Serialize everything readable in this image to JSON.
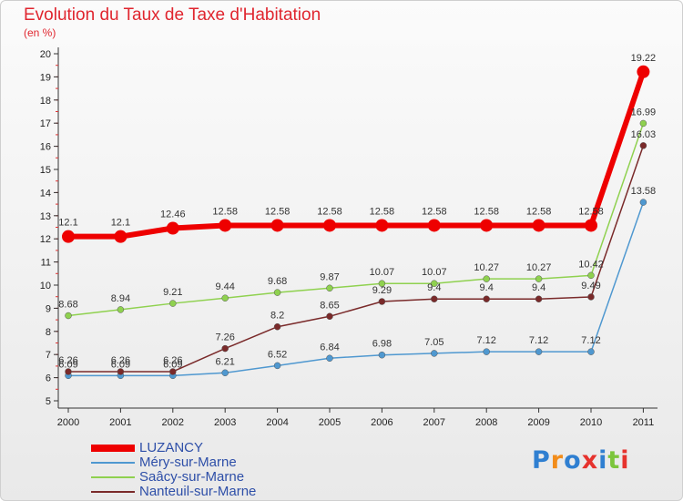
{
  "chart_data": {
    "type": "line",
    "title": "Evolution du Taux de Taxe d'Habitation",
    "subtitle": "(en %)",
    "categories": [
      "2000",
      "2001",
      "2002",
      "2003",
      "2004",
      "2005",
      "2006",
      "2007",
      "2008",
      "2009",
      "2010",
      "2011"
    ],
    "ylim": [
      5,
      20
    ],
    "yticks": [
      5,
      6,
      7,
      8,
      9,
      10,
      11,
      12,
      13,
      14,
      15,
      16,
      17,
      18,
      19,
      20
    ],
    "grid": false,
    "legend_position": "bottom-left",
    "series": [
      {
        "name": "Méry-sur-Marne",
        "color": "#4f98d0",
        "values": [
          6.09,
          6.09,
          6.09,
          6.21,
          6.52,
          6.84,
          6.98,
          7.05,
          7.12,
          7.12,
          7.12,
          13.58
        ],
        "labels": [
          "6.09",
          "6.09",
          "6.09",
          "6.21",
          "6.52",
          "6.84",
          "6.98",
          "7.05",
          "7.12",
          "7.12",
          "7.12",
          "13.58"
        ]
      },
      {
        "name": "Saâcy-sur-Marne",
        "color": "#8fd14f",
        "values": [
          8.68,
          8.94,
          9.21,
          9.44,
          9.68,
          9.87,
          10.07,
          10.07,
          10.27,
          10.27,
          10.42,
          16.99
        ],
        "labels": [
          "8.68",
          "8.94",
          "9.21",
          "9.44",
          "9.68",
          "9.87",
          "10.07",
          "10.07",
          "10.27",
          "10.27",
          "10.42",
          "16.99"
        ]
      },
      {
        "name": "Nanteuil-sur-Marne",
        "color": "#7a2a2a",
        "values": [
          6.26,
          6.26,
          6.26,
          7.26,
          8.2,
          8.65,
          9.29,
          9.4,
          9.4,
          9.4,
          9.49,
          16.03
        ],
        "labels": [
          "6.26",
          "6.26",
          "6.26",
          "7.26",
          "8.2",
          "8.65",
          "9.29",
          "9.4",
          "9.4",
          "9.4",
          "9.49",
          "16.03"
        ]
      },
      {
        "name": "LUZANCY",
        "color": "#ee0000",
        "values": [
          12.1,
          12.1,
          12.46,
          12.58,
          12.58,
          12.58,
          12.58,
          12.58,
          12.58,
          12.58,
          12.58,
          19.22
        ],
        "labels": [
          "12.1",
          "12.1",
          "12.46",
          "12.58",
          "12.58",
          "12.58",
          "12.58",
          "12.58",
          "12.58",
          "12.58",
          "12.58",
          "19.22"
        ]
      }
    ]
  },
  "legend": [
    {
      "label": "LUZANCY",
      "color": "#ee0000"
    },
    {
      "label": "Méry-sur-Marne",
      "color": "#4f98d0"
    },
    {
      "label": "Saâcy-sur-Marne",
      "color": "#8fd14f"
    },
    {
      "label": "Nanteuil-sur-Marne",
      "color": "#7a2a2a"
    }
  ],
  "logo": {
    "letters": [
      "P",
      "r",
      "o",
      "x",
      "i",
      "t",
      "i"
    ],
    "colors": [
      "#2f7fd1",
      "#f28c1a",
      "#2f7fd1",
      "#e6322d",
      "#2f7fd1",
      "#7cc53c",
      "#e6322d"
    ]
  }
}
